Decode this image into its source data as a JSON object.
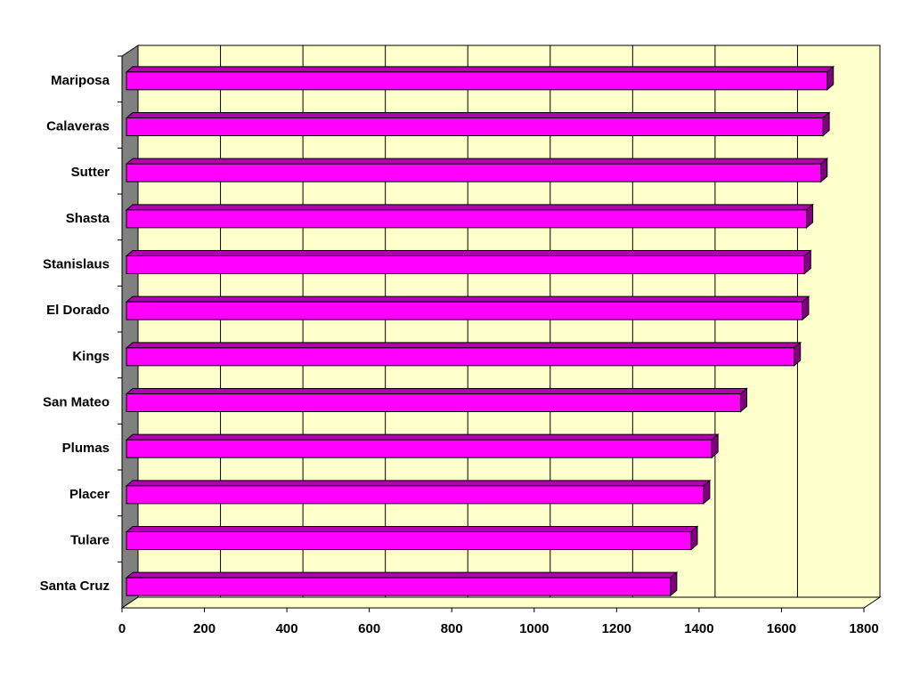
{
  "chart_data": {
    "type": "bar",
    "orientation": "horizontal",
    "three_d": true,
    "categories": [
      "Mariposa",
      "Calaveras",
      "Sutter",
      "Shasta",
      "Stanislaus",
      "El Dorado",
      "Kings",
      "San Mateo",
      "Plumas",
      "Placer",
      "Tulare",
      "Santa Cruz"
    ],
    "values": [
      1700,
      1690,
      1685,
      1650,
      1645,
      1640,
      1620,
      1490,
      1420,
      1400,
      1370,
      1320
    ],
    "color": "#ff00ff",
    "wall_color": "#ffffcc",
    "side_wall_color": "#808080",
    "xlim": [
      0,
      1800
    ],
    "xticks": [
      0,
      200,
      400,
      600,
      800,
      1000,
      1200,
      1400,
      1600,
      1800
    ],
    "grid": true
  }
}
